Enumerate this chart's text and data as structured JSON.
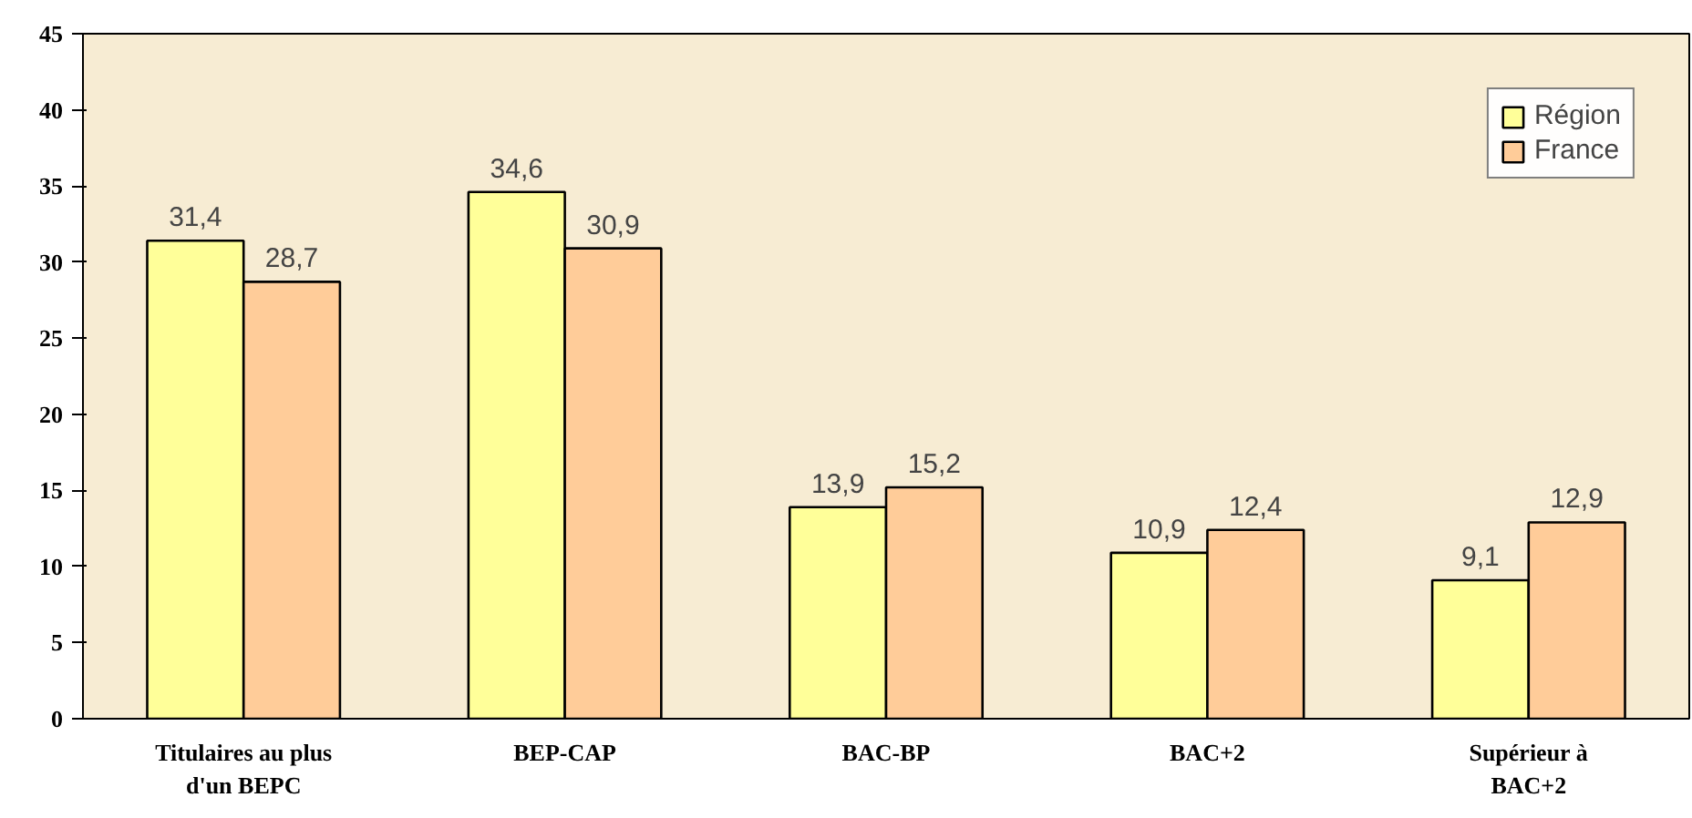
{
  "chart_data": {
    "type": "bar",
    "categories": [
      "Titulaires au plus\nd'un BEPC",
      "BEP-CAP",
      "BAC-BP",
      "BAC+2",
      "Supérieur à\nBAC+2"
    ],
    "series": [
      {
        "name": "Région",
        "color": "#ffff99",
        "values": [
          31.4,
          34.6,
          13.9,
          10.9,
          9.1
        ],
        "value_labels": [
          "31,4",
          "34,6",
          "13,9",
          "10,9",
          "9,1"
        ]
      },
      {
        "name": "France",
        "color": "#ffcc99",
        "values": [
          28.7,
          30.9,
          15.2,
          12.4,
          12.9
        ],
        "value_labels": [
          "28,7",
          "30,9",
          "15,2",
          "12,4",
          "12,9"
        ]
      }
    ],
    "ylim": [
      0,
      45
    ],
    "yticks": [
      0,
      5,
      10,
      15,
      20,
      25,
      30,
      35,
      40,
      45
    ],
    "grid": false,
    "legend": "top right"
  }
}
